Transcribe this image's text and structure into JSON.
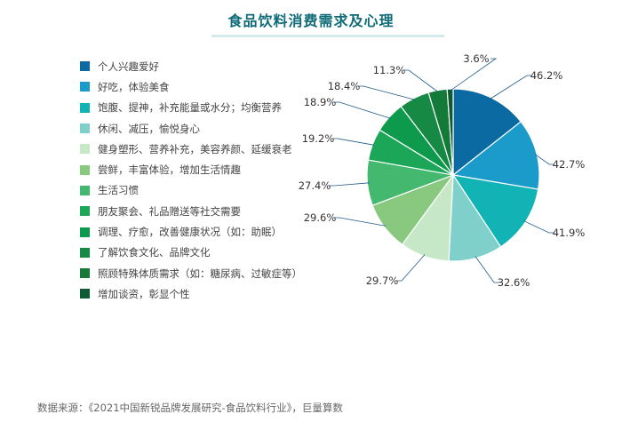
{
  "chart_data": {
    "type": "pie",
    "title": "食品饮料消费需求及心理",
    "categories": [
      "个人兴趣爱好",
      "好吃，体验美食",
      "饱腹、提神，补充能量或水分；均衡营养",
      "休闲、减压，愉悦身心",
      "健身塑形、营养补充，美容养颜、延缓衰老",
      "尝鲜，丰富体验，增加生活情趣",
      "生活习惯",
      "朋友聚会、礼品赠送等社交需要",
      "调理、疗愈，改善健康状况（如：助眠）",
      "了解饮食文化、品牌文化",
      "照顾特殊体质需求（如：糖尿病、过敏症等）",
      "增加谈资，彰显个性"
    ],
    "values": [
      46.2,
      42.7,
      41.9,
      32.6,
      29.7,
      29.6,
      27.4,
      19.2,
      18.9,
      18.4,
      11.3,
      3.6
    ],
    "labels": [
      "46.2%",
      "42.7%",
      "41.9%",
      "32.6%",
      "29.7%",
      "29.6%",
      "27.4%",
      "19.2%",
      "18.9%",
      "18.4%",
      "11.3%",
      "3.6%"
    ],
    "colors": [
      "#0a6aa1",
      "#1b9bc9",
      "#12b3b5",
      "#7fd0cb",
      "#c6e8c6",
      "#88c97f",
      "#43b86e",
      "#1ca758",
      "#0d9a4c",
      "#168a44",
      "#137a38",
      "#0d5a33"
    ],
    "legend": "left"
  },
  "source": "数据来源：《2021中国新锐品牌发展研究-食品饮料行业》，巨量算数"
}
